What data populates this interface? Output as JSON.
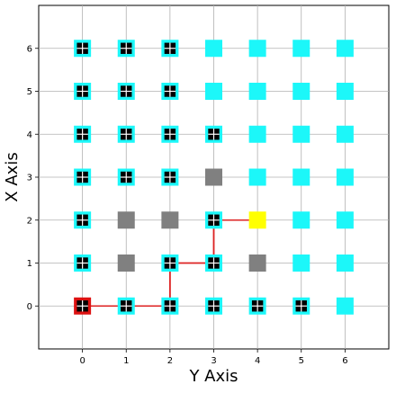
{
  "chart_data": {
    "type": "scatter",
    "title": "",
    "xlabel": "Y Axis",
    "ylabel": "X Axis",
    "xlim": [
      -1,
      7
    ],
    "ylim": [
      -1,
      7
    ],
    "xticks": [
      0,
      1,
      2,
      3,
      4,
      5,
      6
    ],
    "yticks": [
      0,
      1,
      2,
      3,
      4,
      5,
      6
    ],
    "grid": true,
    "colors": {
      "free": "#1cf7f9",
      "obstacle": "#808080",
      "start": "#dd1111",
      "goal": "#ffff00",
      "marker": "#000000",
      "path": "#dd2222"
    },
    "cells": [
      {
        "x": 0,
        "y": 6,
        "state": "free",
        "marked": true
      },
      {
        "x": 1,
        "y": 6,
        "state": "free",
        "marked": true
      },
      {
        "x": 2,
        "y": 6,
        "state": "free",
        "marked": true
      },
      {
        "x": 3,
        "y": 6,
        "state": "free",
        "marked": false
      },
      {
        "x": 4,
        "y": 6,
        "state": "free",
        "marked": false
      },
      {
        "x": 5,
        "y": 6,
        "state": "free",
        "marked": false
      },
      {
        "x": 6,
        "y": 6,
        "state": "free",
        "marked": false
      },
      {
        "x": 0,
        "y": 5,
        "state": "free",
        "marked": true
      },
      {
        "x": 1,
        "y": 5,
        "state": "free",
        "marked": true
      },
      {
        "x": 2,
        "y": 5,
        "state": "free",
        "marked": true
      },
      {
        "x": 3,
        "y": 5,
        "state": "free",
        "marked": false
      },
      {
        "x": 4,
        "y": 5,
        "state": "free",
        "marked": false
      },
      {
        "x": 5,
        "y": 5,
        "state": "free",
        "marked": false
      },
      {
        "x": 6,
        "y": 5,
        "state": "free",
        "marked": false
      },
      {
        "x": 0,
        "y": 4,
        "state": "free",
        "marked": true
      },
      {
        "x": 1,
        "y": 4,
        "state": "free",
        "marked": true
      },
      {
        "x": 2,
        "y": 4,
        "state": "free",
        "marked": true
      },
      {
        "x": 3,
        "y": 4,
        "state": "free",
        "marked": true
      },
      {
        "x": 4,
        "y": 4,
        "state": "free",
        "marked": false
      },
      {
        "x": 5,
        "y": 4,
        "state": "free",
        "marked": false
      },
      {
        "x": 6,
        "y": 4,
        "state": "free",
        "marked": false
      },
      {
        "x": 0,
        "y": 3,
        "state": "free",
        "marked": true
      },
      {
        "x": 1,
        "y": 3,
        "state": "free",
        "marked": true
      },
      {
        "x": 2,
        "y": 3,
        "state": "free",
        "marked": true
      },
      {
        "x": 3,
        "y": 3,
        "state": "obstacle",
        "marked": false
      },
      {
        "x": 4,
        "y": 3,
        "state": "free",
        "marked": false
      },
      {
        "x": 5,
        "y": 3,
        "state": "free",
        "marked": false
      },
      {
        "x": 6,
        "y": 3,
        "state": "free",
        "marked": false
      },
      {
        "x": 0,
        "y": 2,
        "state": "free",
        "marked": true
      },
      {
        "x": 1,
        "y": 2,
        "state": "obstacle",
        "marked": false
      },
      {
        "x": 2,
        "y": 2,
        "state": "obstacle",
        "marked": false
      },
      {
        "x": 3,
        "y": 2,
        "state": "free",
        "marked": true
      },
      {
        "x": 4,
        "y": 2,
        "state": "goal",
        "marked": false
      },
      {
        "x": 5,
        "y": 2,
        "state": "free",
        "marked": false
      },
      {
        "x": 6,
        "y": 2,
        "state": "free",
        "marked": false
      },
      {
        "x": 0,
        "y": 1,
        "state": "free",
        "marked": true
      },
      {
        "x": 1,
        "y": 1,
        "state": "obstacle",
        "marked": false
      },
      {
        "x": 2,
        "y": 1,
        "state": "free",
        "marked": true
      },
      {
        "x": 3,
        "y": 1,
        "state": "free",
        "marked": true
      },
      {
        "x": 4,
        "y": 1,
        "state": "obstacle",
        "marked": false
      },
      {
        "x": 5,
        "y": 1,
        "state": "free",
        "marked": false
      },
      {
        "x": 6,
        "y": 1,
        "state": "free",
        "marked": false
      },
      {
        "x": 0,
        "y": 0,
        "state": "start",
        "marked": true
      },
      {
        "x": 1,
        "y": 0,
        "state": "free",
        "marked": true
      },
      {
        "x": 2,
        "y": 0,
        "state": "free",
        "marked": true
      },
      {
        "x": 3,
        "y": 0,
        "state": "free",
        "marked": true
      },
      {
        "x": 4,
        "y": 0,
        "state": "free",
        "marked": true
      },
      {
        "x": 5,
        "y": 0,
        "state": "free",
        "marked": true
      },
      {
        "x": 6,
        "y": 0,
        "state": "free",
        "marked": false
      }
    ],
    "path": [
      [
        0,
        0
      ],
      [
        1,
        0
      ],
      [
        2,
        0
      ],
      [
        2,
        1
      ],
      [
        3,
        1
      ],
      [
        3,
        2
      ],
      [
        4,
        2
      ]
    ]
  }
}
